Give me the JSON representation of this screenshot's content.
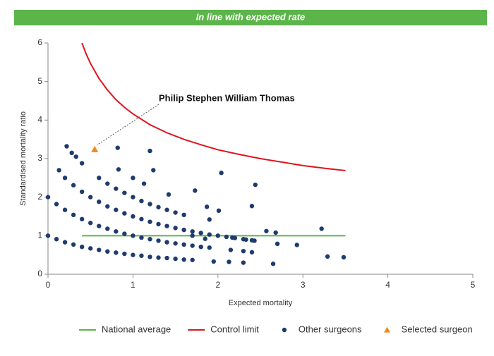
{
  "banner": {
    "text": "In line with expected rate",
    "color": "#5cb54a"
  },
  "chart_data": {
    "type": "scatter",
    "x_label": "Expected mortality",
    "y_label": "Standardised mortality ratio",
    "xlim": [
      0,
      5
    ],
    "ylim": [
      0,
      6
    ],
    "xticks": [
      0,
      1,
      2,
      3,
      4,
      5
    ],
    "yticks": [
      0,
      1,
      2,
      3,
      4,
      5,
      6
    ],
    "grid": false,
    "legend": "bottom",
    "annotation": "Philip Stephen William Thomas",
    "series": [
      {
        "name": "National average",
        "type": "line",
        "color": "#5cb54a",
        "x": [
          0.4,
          3.5
        ],
        "values": [
          1,
          1
        ]
      },
      {
        "name": "Control limit",
        "type": "line",
        "color": "#e0141e",
        "x": [
          0.4,
          0.45,
          0.5,
          0.6,
          0.7,
          0.8,
          0.9,
          1.0,
          1.2,
          1.4,
          1.6,
          1.8,
          2.0,
          2.25,
          2.5,
          2.75,
          3.0,
          3.25,
          3.5
        ],
        "values": [
          6.0,
          5.71,
          5.47,
          5.08,
          4.78,
          4.53,
          4.33,
          4.16,
          3.88,
          3.67,
          3.5,
          3.36,
          3.23,
          3.11,
          3.0,
          2.91,
          2.82,
          2.75,
          2.69
        ]
      },
      {
        "name": "Other surgeons",
        "type": "scatter",
        "marker": "circle",
        "color": "#1f3b6e",
        "x": [
          0,
          0.1,
          0.2,
          0.3,
          0.4,
          0.5,
          0.6,
          0.7,
          0.8,
          0.9,
          1.0,
          1.1,
          1.2,
          1.3,
          1.4,
          1.5,
          1.6,
          1.7,
          0,
          0.1,
          0.2,
          0.3,
          0.4,
          0.5,
          0.6,
          0.7,
          0.8,
          0.9,
          1.0,
          1.1,
          1.2,
          1.3,
          1.4,
          1.5,
          1.6,
          1.7,
          1.8,
          1.9,
          0.2,
          0.3,
          0.4,
          0.5,
          0.6,
          0.7,
          0.8,
          0.9,
          1.0,
          1.1,
          1.2,
          1.3,
          1.4,
          1.5,
          1.6,
          1.7,
          1.8,
          1.9,
          2.0,
          2.1,
          2.2,
          2.3,
          2.4,
          0.6,
          0.7,
          0.8,
          0.9,
          1.0,
          1.1,
          1.2,
          1.3,
          1.4,
          1.5,
          1.6,
          0.13,
          0.22,
          0.28,
          0.33,
          0.4,
          0.82,
          0.83,
          1.0,
          1.2,
          1.24,
          1.13,
          1.42,
          1.73,
          2.04,
          2.44,
          2.4,
          1.87,
          2.01,
          1.9,
          2.57,
          2.68,
          3.22,
          2.7,
          2.93,
          3.29,
          3.48,
          2.65,
          2.3,
          2.13,
          1.95,
          2.4,
          2.3,
          2.15,
          2.17,
          2.33,
          2.43,
          1.7,
          1.85
        ],
        "values": [
          1,
          0.91,
          0.83,
          0.77,
          0.71,
          0.67,
          0.63,
          0.59,
          0.56,
          0.53,
          0.5,
          0.48,
          0.45,
          0.43,
          0.42,
          0.4,
          0.38,
          0.37,
          2,
          1.82,
          1.67,
          1.54,
          1.43,
          1.33,
          1.25,
          1.18,
          1.11,
          1.05,
          1,
          0.95,
          0.91,
          0.87,
          0.83,
          0.8,
          0.77,
          0.74,
          0.71,
          0.69,
          2.5,
          2.31,
          2.14,
          2,
          1.88,
          1.76,
          1.67,
          1.58,
          1.5,
          1.43,
          1.36,
          1.3,
          1.25,
          1.2,
          1.15,
          1.11,
          1.07,
          1.03,
          1,
          0.97,
          0.94,
          0.91,
          0.88,
          2.5,
          2.35,
          2.22,
          2.11,
          2,
          1.9,
          1.82,
          1.74,
          1.67,
          1.6,
          1.54,
          2.7,
          3.32,
          3.15,
          3.05,
          2.88,
          3.28,
          2.72,
          2.5,
          3.2,
          2.7,
          2.35,
          2.07,
          2.17,
          2.63,
          2.32,
          1.77,
          1.75,
          1.65,
          1.42,
          1.12,
          1.08,
          1.18,
          0.79,
          0.76,
          0.46,
          0.44,
          0.27,
          0.3,
          0.32,
          0.33,
          0.57,
          0.6,
          0.63,
          0.95,
          0.9,
          0.87,
          1.0,
          0.92
        ]
      },
      {
        "name": "Selected surgeon",
        "type": "scatter",
        "marker": "triangle",
        "color": "#f08a1c",
        "x": [
          0.55
        ],
        "values": [
          3.24
        ]
      }
    ]
  }
}
